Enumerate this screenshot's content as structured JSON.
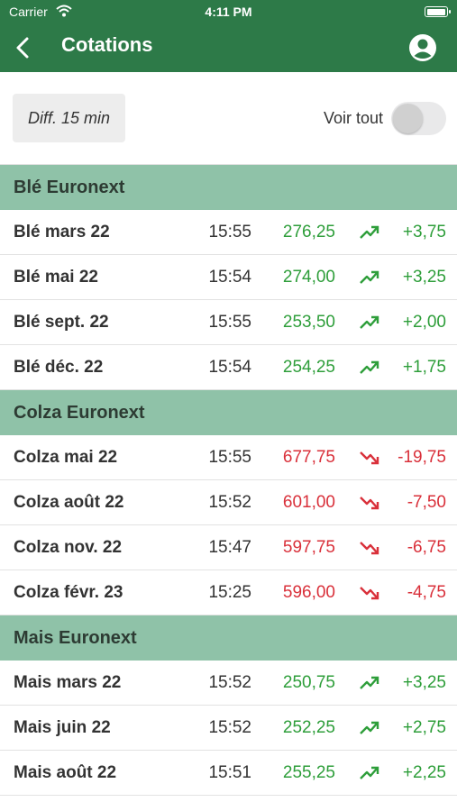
{
  "status_bar": {
    "carrier": "Carrier",
    "time": "4:11 PM"
  },
  "nav": {
    "title": "Cotations",
    "back_icon": "chevron-left-icon",
    "account_icon": "account-circle-icon"
  },
  "filters": {
    "delay_label": "Diff. 15 min",
    "show_all_label": "Voir tout",
    "show_all_on": false
  },
  "colors": {
    "header": "#2d7a48",
    "section": "#8fc2a8",
    "up": "#2e9e3a",
    "down": "#d9303a"
  },
  "sections": [
    {
      "title": "Blé Euronext",
      "rows": [
        {
          "name": "Blé mars 22",
          "time": "15:55",
          "price": "276,25",
          "change": "+3,75",
          "trend": "up"
        },
        {
          "name": "Blé mai 22",
          "time": "15:54",
          "price": "274,00",
          "change": "+3,25",
          "trend": "up"
        },
        {
          "name": "Blé sept. 22",
          "time": "15:55",
          "price": "253,50",
          "change": "+2,00",
          "trend": "up"
        },
        {
          "name": "Blé déc. 22",
          "time": "15:54",
          "price": "254,25",
          "change": "+1,75",
          "trend": "up"
        }
      ]
    },
    {
      "title": "Colza Euronext",
      "rows": [
        {
          "name": "Colza mai 22",
          "time": "15:55",
          "price": "677,75",
          "change": "-19,75",
          "trend": "down"
        },
        {
          "name": "Colza août 22",
          "time": "15:52",
          "price": "601,00",
          "change": "-7,50",
          "trend": "down"
        },
        {
          "name": "Colza nov. 22",
          "time": "15:47",
          "price": "597,75",
          "change": "-6,75",
          "trend": "down"
        },
        {
          "name": "Colza févr. 23",
          "time": "15:25",
          "price": "596,00",
          "change": "-4,75",
          "trend": "down"
        }
      ]
    },
    {
      "title": "Mais Euronext",
      "rows": [
        {
          "name": "Mais mars 22",
          "time": "15:52",
          "price": "250,75",
          "change": "+3,25",
          "trend": "up"
        },
        {
          "name": "Mais juin 22",
          "time": "15:52",
          "price": "252,25",
          "change": "+2,75",
          "trend": "up"
        },
        {
          "name": "Mais août 22",
          "time": "15:51",
          "price": "255,25",
          "change": "+2,25",
          "trend": "up"
        }
      ]
    }
  ]
}
